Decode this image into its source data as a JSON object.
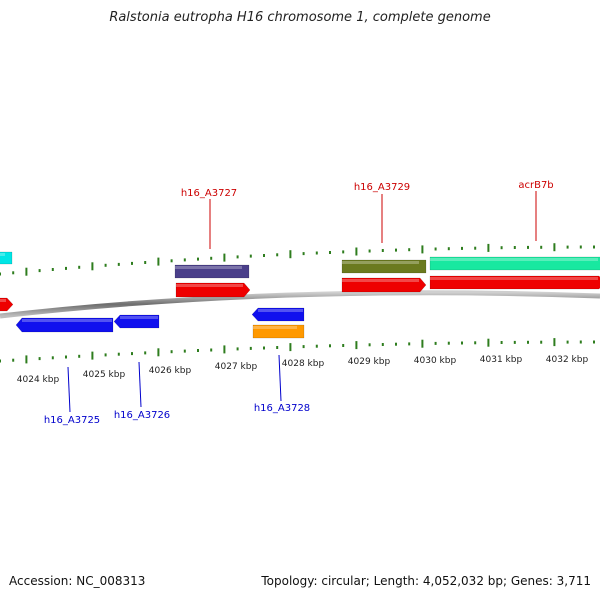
{
  "title": "Ralstonia eutropha H16 chromosome 1, complete genome",
  "footer": {
    "accession": "Accession: NC_008313",
    "summary": "Topology: circular; Length: 4,052,032 bp; Genes: 3,711"
  },
  "colors": {
    "backbone": "#8a8a8a",
    "tick": "#2e7d1e",
    "forward_label": "#cc0000",
    "reverse_label": "#0000cc"
  },
  "scale_labels": [
    "4024 kbp",
    "4025 kbp",
    "4026 kbp",
    "4027 kbp",
    "4028 kbp",
    "4029 kbp",
    "4030 kbp",
    "4031 kbp",
    "4032 kbp"
  ],
  "gene_labels": {
    "forward": [
      "h16_A3727",
      "h16_A3729",
      "acrB7b"
    ],
    "reverse": [
      "h16_A3725",
      "h16_A3726",
      "h16_A3728"
    ]
  },
  "features": [
    {
      "name": "feature-cyan-left",
      "color": "#00e5e5"
    },
    {
      "name": "feature-red-left",
      "color": "#ee0000"
    },
    {
      "name": "feature-slate-h16_A3727",
      "color": "#4a3f8a"
    },
    {
      "name": "feature-red-h16_A3727",
      "color": "#ee0000"
    },
    {
      "name": "feature-olive-h16_A3729",
      "color": "#6b7a1f"
    },
    {
      "name": "feature-red-h16_A3729",
      "color": "#ee0000"
    },
    {
      "name": "feature-teal-acrB7b",
      "color": "#18e8a0"
    },
    {
      "name": "feature-red-acrB7b",
      "color": "#ee0000"
    },
    {
      "name": "feature-blue-h16_A3725",
      "color": "#1010ee"
    },
    {
      "name": "feature-blue-h16_A3726",
      "color": "#1010ee"
    },
    {
      "name": "feature-blue-h16_A3728",
      "color": "#1010ee"
    },
    {
      "name": "feature-orange-h16_A3728",
      "color": "#ff9900"
    }
  ]
}
